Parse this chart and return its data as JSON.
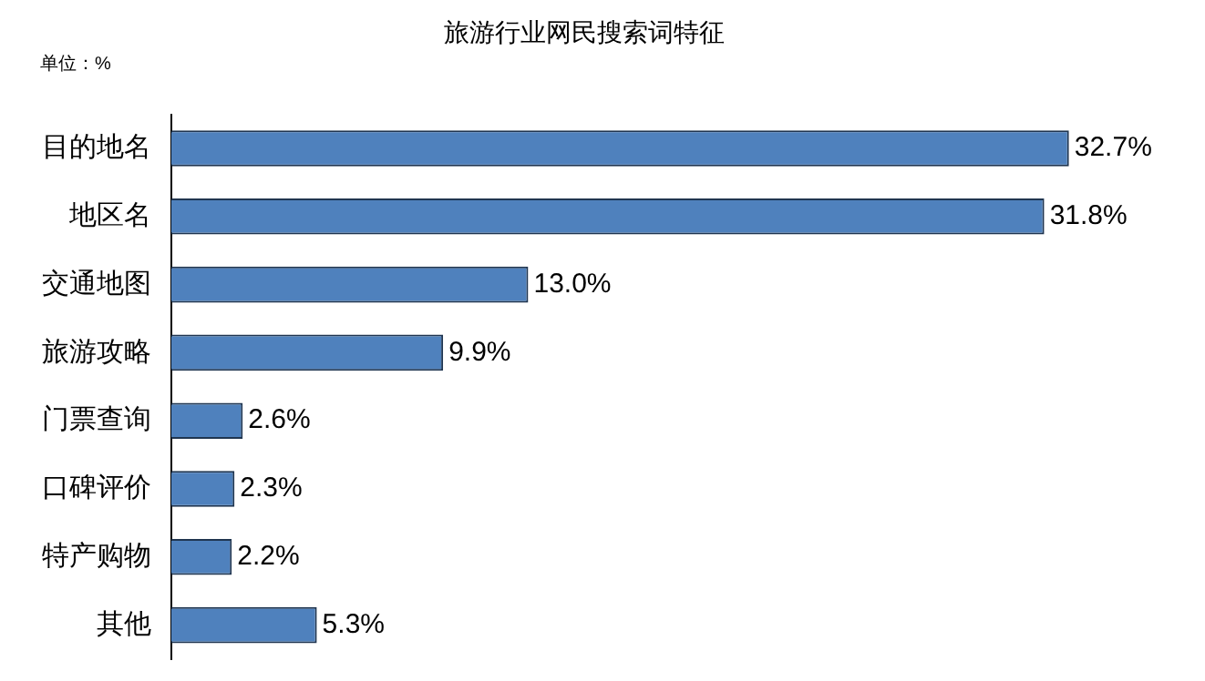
{
  "chart_data": {
    "type": "bar",
    "orientation": "horizontal",
    "title": "旅游行业网民搜索词特征",
    "annotations": [
      "单位：%"
    ],
    "categories": [
      "目的地名",
      "地区名",
      "交通地图",
      "旅游攻略",
      "门票查询",
      "口碑评价",
      "特产购物",
      "其他"
    ],
    "values": [
      32.7,
      31.8,
      13.0,
      9.9,
      2.6,
      2.3,
      2.2,
      5.3
    ],
    "value_labels": [
      "32.7%",
      "31.8%",
      "13.0%",
      "9.9%",
      "2.6%",
      "2.3%",
      "2.2%",
      "5.3%"
    ],
    "color": "#4f81bd",
    "grid": false,
    "legend": false,
    "tick_labels": "y"
  }
}
